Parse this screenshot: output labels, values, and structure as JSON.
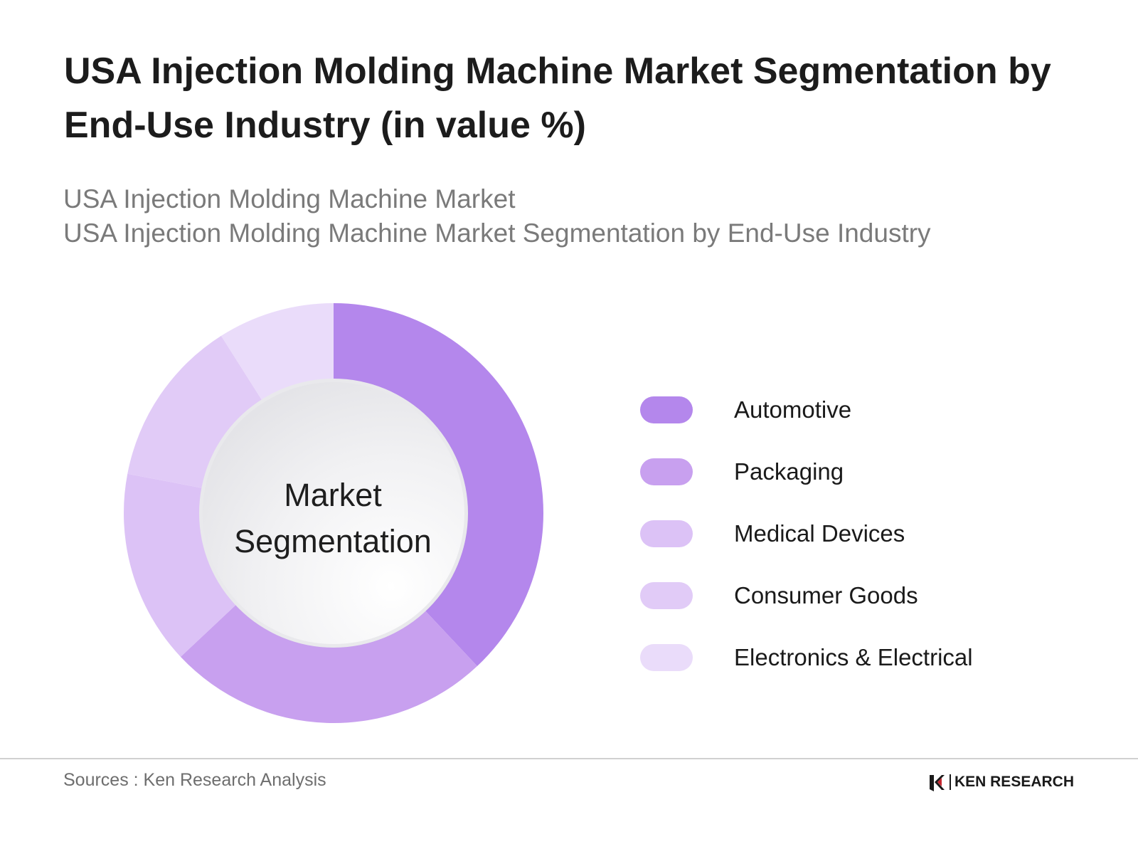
{
  "header": {
    "title": "USA Injection Molding Machine Market Segmentation by\nEnd-Use Industry  (in value %)",
    "subtitle_line1": "USA Injection Molding Machine Market",
    "subtitle_line2": "USA Injection Molding Machine Market Segmentation by End-Use Industry"
  },
  "chart_data": {
    "type": "pie",
    "variant": "donut",
    "categories": [
      "Automotive",
      "Packaging",
      "Medical Devices",
      "Consumer Goods",
      "Electronics & Electrical"
    ],
    "values": [
      38,
      25,
      15,
      13,
      9
    ],
    "unit": "%",
    "colors": [
      "#b487ec",
      "#c8a0ef",
      "#dcc2f6",
      "#e1cbf7",
      "#eadcfa"
    ],
    "center_label": "Market\nSegmentation",
    "legend_position": "right",
    "start_angle": "12 o'clock",
    "direction": "clockwise"
  },
  "footer": {
    "source": "Sources : Ken Research Analysis",
    "brand": "KEN RESEARCH"
  }
}
